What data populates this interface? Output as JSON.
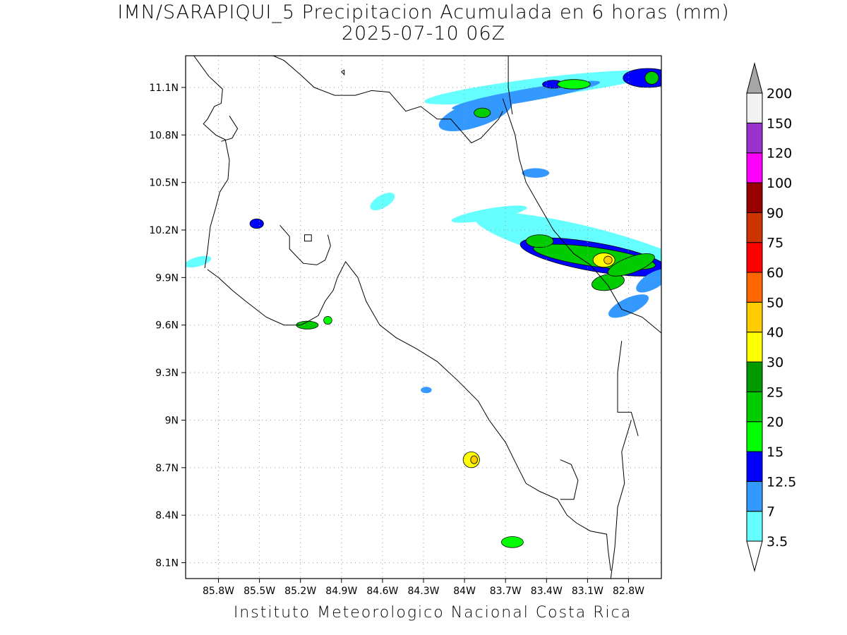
{
  "title": {
    "line1": "IMN/SARAPIQUI_5 Precipitacion Acumulada en 6 horas (mm)",
    "line2": "2025-07-10 06Z"
  },
  "footer": "Instituto Meteorologico Nacional Costa Rica",
  "map": {
    "extent": {
      "lon_min": -86.04,
      "lon_max": -82.56,
      "lat_min": 8.0,
      "lat_max": 11.3
    },
    "lon_ticks": [
      {
        "value": -85.8,
        "label": "85.8W"
      },
      {
        "value": -85.5,
        "label": "85.5W"
      },
      {
        "value": -85.2,
        "label": "85.2W"
      },
      {
        "value": -84.9,
        "label": "84.9W"
      },
      {
        "value": -84.6,
        "label": "84.6W"
      },
      {
        "value": -84.3,
        "label": "84.3W"
      },
      {
        "value": -84.0,
        "label": "84W"
      },
      {
        "value": -83.7,
        "label": "83.7W"
      },
      {
        "value": -83.4,
        "label": "83.4W"
      },
      {
        "value": -83.1,
        "label": "83.1W"
      },
      {
        "value": -82.8,
        "label": "82.8W"
      }
    ],
    "lat_ticks": [
      {
        "value": 11.1,
        "label": "11.1N"
      },
      {
        "value": 10.8,
        "label": "10.8N"
      },
      {
        "value": 10.5,
        "label": "10.5N"
      },
      {
        "value": 10.2,
        "label": "10.2N"
      },
      {
        "value": 9.9,
        "label": "9.9N"
      },
      {
        "value": 9.6,
        "label": "9.6N"
      },
      {
        "value": 9.3,
        "label": "9.3N"
      },
      {
        "value": 9.0,
        "label": "9N"
      },
      {
        "value": 8.7,
        "label": "8.7N"
      },
      {
        "value": 8.4,
        "label": "8.4N"
      },
      {
        "value": 8.1,
        "label": "8.1N"
      }
    ],
    "grid": true,
    "coastlines": [
      [
        [
          -85.98,
          11.3
        ],
        [
          -85.87,
          11.17
        ],
        [
          -85.77,
          11.09
        ],
        [
          -85.78,
          11.0
        ],
        [
          -85.83,
          10.98
        ],
        [
          -85.88,
          10.9
        ],
        [
          -85.91,
          10.87
        ],
        [
          -85.82,
          10.8
        ],
        [
          -85.75,
          10.77
        ],
        [
          -85.72,
          10.64
        ],
        [
          -85.73,
          10.52
        ],
        [
          -85.79,
          10.44
        ],
        [
          -85.82,
          10.34
        ],
        [
          -85.86,
          10.22
        ],
        [
          -85.88,
          10.07
        ],
        [
          -85.9,
          9.96
        ]
      ],
      [
        [
          -85.4,
          11.3
        ],
        [
          -85.32,
          11.27
        ],
        [
          -85.2,
          11.18
        ],
        [
          -85.1,
          11.1
        ],
        [
          -84.95,
          11.05
        ],
        [
          -84.8,
          11.05
        ],
        [
          -84.68,
          11.08
        ],
        [
          -84.55,
          11.07
        ],
        [
          -84.43,
          10.95
        ],
        [
          -84.32,
          10.98
        ],
        [
          -84.2,
          10.9
        ],
        [
          -84.1,
          10.9
        ],
        [
          -83.95,
          10.75
        ],
        [
          -83.88,
          10.78
        ],
        [
          -83.75,
          10.9
        ],
        [
          -83.72,
          10.95
        ]
      ],
      [
        [
          -85.78,
          10.76
        ],
        [
          -85.7,
          10.78
        ],
        [
          -85.66,
          10.84
        ],
        [
          -85.72,
          10.92
        ]
      ],
      [
        [
          -85.0,
          10.17
        ],
        [
          -84.98,
          10.1
        ],
        [
          -85.02,
          10.01
        ],
        [
          -85.08,
          9.98
        ],
        [
          -85.18,
          9.99
        ],
        [
          -85.28,
          10.08
        ],
        [
          -85.28,
          10.16
        ],
        [
          -85.35,
          10.23
        ]
      ],
      [
        [
          -85.88,
          9.95
        ],
        [
          -85.8,
          9.9
        ],
        [
          -85.7,
          9.82
        ],
        [
          -85.6,
          9.75
        ],
        [
          -85.45,
          9.65
        ],
        [
          -85.32,
          9.6
        ],
        [
          -85.2,
          9.6
        ],
        [
          -85.15,
          9.62
        ],
        [
          -85.07,
          9.66
        ],
        [
          -85.02,
          9.75
        ],
        [
          -84.96,
          9.82
        ],
        [
          -84.93,
          9.9
        ],
        [
          -84.87,
          10.0
        ],
        [
          -84.78,
          9.9
        ],
        [
          -84.72,
          9.75
        ],
        [
          -84.62,
          9.6
        ],
        [
          -84.5,
          9.52
        ],
        [
          -84.35,
          9.45
        ],
        [
          -84.2,
          9.37
        ],
        [
          -84.05,
          9.25
        ],
        [
          -83.9,
          9.12
        ],
        [
          -83.82,
          9.0
        ],
        [
          -83.7,
          8.86
        ],
        [
          -83.62,
          8.72
        ],
        [
          -83.55,
          8.6
        ],
        [
          -83.45,
          8.55
        ],
        [
          -83.32,
          8.5
        ],
        [
          -83.25,
          8.4
        ],
        [
          -83.18,
          8.35
        ],
        [
          -83.08,
          8.3
        ],
        [
          -82.96,
          8.28
        ],
        [
          -82.95,
          8.18
        ],
        [
          -82.93,
          8.05
        ]
      ],
      [
        [
          -83.72,
          11.03
        ],
        [
          -83.63,
          10.8
        ],
        [
          -83.6,
          10.65
        ],
        [
          -83.55,
          10.5
        ],
        [
          -83.45,
          10.35
        ],
        [
          -83.35,
          10.2
        ],
        [
          -83.2,
          10.05
        ],
        [
          -83.08,
          9.98
        ],
        [
          -82.95,
          9.85
        ],
        [
          -82.85,
          9.7
        ],
        [
          -82.7,
          9.65
        ],
        [
          -82.56,
          9.55
        ]
      ],
      [
        [
          -82.85,
          9.5
        ],
        [
          -82.88,
          9.3
        ],
        [
          -82.88,
          9.05
        ],
        [
          -82.78,
          9.05
        ],
        [
          -82.73,
          8.9
        ]
      ],
      [
        [
          -83.3,
          8.75
        ],
        [
          -83.22,
          8.72
        ],
        [
          -83.17,
          8.62
        ],
        [
          -83.2,
          8.5
        ],
        [
          -83.3,
          8.5
        ]
      ]
    ],
    "borders": [
      [
        [
          -83.68,
          11.3
        ],
        [
          -83.68,
          11.1
        ],
        [
          -83.65,
          10.93
        ]
      ],
      [
        [
          -82.93,
          8.0
        ],
        [
          -82.9,
          8.2
        ],
        [
          -82.88,
          8.45
        ],
        [
          -82.83,
          8.6
        ],
        [
          -82.85,
          8.8
        ],
        [
          -82.78,
          9.0
        ]
      ]
    ],
    "lakes": [
      [
        [
          -85.17,
          10.17
        ],
        [
          -85.12,
          10.17
        ],
        [
          -85.12,
          10.13
        ],
        [
          -85.17,
          10.13
        ]
      ],
      [
        [
          -84.9,
          11.2
        ],
        [
          -84.88,
          11.21
        ],
        [
          -84.88,
          11.18
        ]
      ]
    ],
    "precip_cells": [
      {
        "lon": -83.45,
        "lat": 11.1,
        "rx": 0.85,
        "ry": 0.06,
        "rot": -7,
        "level": 3.5
      },
      {
        "lon": -83.55,
        "lat": 11.05,
        "rx": 0.55,
        "ry": 0.04,
        "rot": -10,
        "level": 7
      },
      {
        "lon": -83.35,
        "lat": 11.12,
        "rx": 0.08,
        "ry": 0.025,
        "rot": 0,
        "level": 12.5
      },
      {
        "lon": -83.2,
        "lat": 11.12,
        "rx": 0.12,
        "ry": 0.03,
        "rot": 0,
        "level": 15
      },
      {
        "lon": -83.92,
        "lat": 10.93,
        "rx": 0.28,
        "ry": 0.08,
        "rot": -18,
        "level": 7
      },
      {
        "lon": -83.87,
        "lat": 10.94,
        "rx": 0.06,
        "ry": 0.03,
        "rot": 0,
        "level": 20
      },
      {
        "lon": -82.66,
        "lat": 11.16,
        "rx": 0.18,
        "ry": 0.06,
        "rot": 0,
        "level": 12.5
      },
      {
        "lon": -82.63,
        "lat": 11.16,
        "rx": 0.05,
        "ry": 0.04,
        "rot": 0,
        "level": 20
      },
      {
        "lon": -83.1,
        "lat": 10.1,
        "rx": 0.85,
        "ry": 0.12,
        "rot": 14,
        "level": 3.5
      },
      {
        "lon": -83.05,
        "lat": 10.03,
        "rx": 0.55,
        "ry": 0.09,
        "rot": 10,
        "level": 12.5
      },
      {
        "lon": -83.05,
        "lat": 10.03,
        "rx": 0.45,
        "ry": 0.06,
        "rot": 8,
        "level": 20
      },
      {
        "lon": -82.98,
        "lat": 10.01,
        "rx": 0.08,
        "ry": 0.045,
        "rot": 0,
        "level": 30
      },
      {
        "lon": -82.95,
        "lat": 10.01,
        "rx": 0.03,
        "ry": 0.025,
        "rot": 0,
        "level": 40
      },
      {
        "lon": -83.45,
        "lat": 10.13,
        "rx": 0.1,
        "ry": 0.04,
        "rot": 0,
        "level": 20
      },
      {
        "lon": -82.95,
        "lat": 9.87,
        "rx": 0.12,
        "ry": 0.05,
        "rot": -10,
        "level": 20
      },
      {
        "lon": -82.78,
        "lat": 9.98,
        "rx": 0.18,
        "ry": 0.05,
        "rot": -20,
        "level": 20
      },
      {
        "lon": -82.62,
        "lat": 9.88,
        "rx": 0.14,
        "ry": 0.05,
        "rot": -30,
        "level": 7
      },
      {
        "lon": -82.8,
        "lat": 9.72,
        "rx": 0.16,
        "ry": 0.05,
        "rot": -25,
        "level": 7
      },
      {
        "lon": -83.48,
        "lat": 10.56,
        "rx": 0.1,
        "ry": 0.03,
        "rot": 0,
        "level": 7
      },
      {
        "lon": -83.82,
        "lat": 10.3,
        "rx": 0.28,
        "ry": 0.035,
        "rot": -10,
        "level": 3.5
      },
      {
        "lon": -84.6,
        "lat": 10.38,
        "rx": 0.1,
        "ry": 0.04,
        "rot": -30,
        "level": 3.5
      },
      {
        "lon": -85.52,
        "lat": 10.24,
        "rx": 0.05,
        "ry": 0.03,
        "rot": 0,
        "level": 12.5
      },
      {
        "lon": -85.95,
        "lat": 10.0,
        "rx": 0.1,
        "ry": 0.03,
        "rot": -15,
        "level": 3.5
      },
      {
        "lon": -85.15,
        "lat": 9.6,
        "rx": 0.08,
        "ry": 0.025,
        "rot": 0,
        "level": 20
      },
      {
        "lon": -85.0,
        "lat": 9.63,
        "rx": 0.03,
        "ry": 0.025,
        "rot": 0,
        "level": 15
      },
      {
        "lon": -84.28,
        "lat": 9.19,
        "rx": 0.04,
        "ry": 0.02,
        "rot": 0,
        "level": 7
      },
      {
        "lon": -83.95,
        "lat": 8.75,
        "rx": 0.06,
        "ry": 0.05,
        "rot": 0,
        "level": 30
      },
      {
        "lon": -83.93,
        "lat": 8.75,
        "rx": 0.025,
        "ry": 0.025,
        "rot": 0,
        "level": 40
      },
      {
        "lon": -83.65,
        "lat": 8.23,
        "rx": 0.08,
        "ry": 0.035,
        "rot": 0,
        "level": 15
      }
    ]
  },
  "colorbar": {
    "levels": [
      {
        "value": "3.5",
        "color": "#66ffff"
      },
      {
        "value": "7",
        "color": "#3399ff"
      },
      {
        "value": "12.5",
        "color": "#0000ff"
      },
      {
        "value": "15",
        "color": "#00ff00"
      },
      {
        "value": "20",
        "color": "#00cc00"
      },
      {
        "value": "25",
        "color": "#009900"
      },
      {
        "value": "30",
        "color": "#ffff00"
      },
      {
        "value": "40",
        "color": "#ffcc00"
      },
      {
        "value": "50",
        "color": "#ff6600"
      },
      {
        "value": "60",
        "color": "#ff0000"
      },
      {
        "value": "75",
        "color": "#cc3300"
      },
      {
        "value": "90",
        "color": "#990000"
      },
      {
        "value": "100",
        "color": "#ff00ff"
      },
      {
        "value": "120",
        "color": "#9933cc"
      },
      {
        "value": "150",
        "color": "#f2f2f2"
      },
      {
        "value": "200",
        "color": "#a6a6a6"
      }
    ],
    "under_color": "#ffffff",
    "over_color": "#a6a6a6"
  }
}
